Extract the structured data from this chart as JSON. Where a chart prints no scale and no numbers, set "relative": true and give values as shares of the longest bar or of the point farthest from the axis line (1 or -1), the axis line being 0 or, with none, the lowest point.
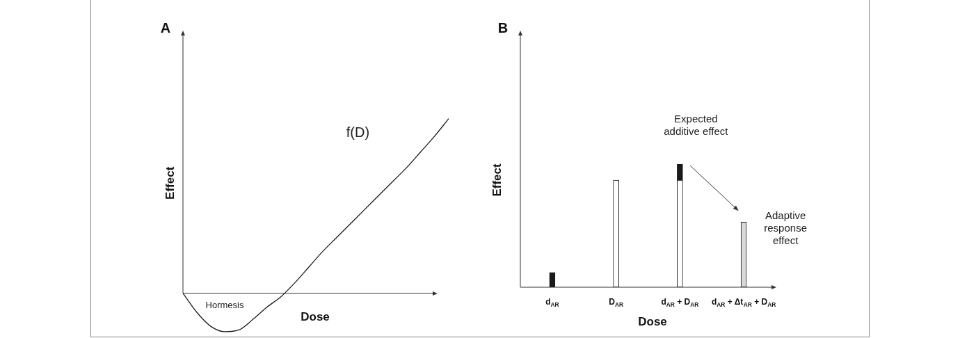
{
  "chart_data": [
    {
      "type": "line",
      "title": "A",
      "xlabel": "Dose",
      "ylabel": "Effect",
      "relative": true,
      "categories": [
        null,
        null,
        null,
        null,
        null,
        null,
        null,
        null,
        null,
        null,
        null,
        null,
        null,
        null,
        null,
        null,
        null,
        null,
        null,
        null
      ],
      "series": [
        {
          "name": "f(D)",
          "color": "#1a1a1a",
          "values": [
            0,
            -0.11,
            -0.19,
            -0.22,
            -0.21,
            -0.15,
            -0.08,
            -0.02,
            0.06,
            0.15,
            0.24,
            0.32,
            0.4,
            0.48,
            0.56,
            0.64,
            0.72,
            0.81,
            0.9,
            1
          ]
        }
      ],
      "annotations": [
        "Hormesis"
      ]
    },
    {
      "type": "bar",
      "title": "B",
      "xlabel": "Dose",
      "ylabel": "Effect",
      "relative": true,
      "stacked": true,
      "categories": [
        "d$_{AR}$",
        "D$_{AR}$",
        "d$_{AR}$ + D$_{AR}$",
        "d$_{AR}$ + Δt$_{AR}$ + D$_{AR}$"
      ],
      "series": [
        {
          "colors": [
            "#1a1a1a",
            "#ffffff",
            "#ffffff",
            "#d9d9d9"
          ],
          "values": [
            0.12,
            0.87,
            0.87,
            0.53
          ]
        },
        {
          "color": "#1a1a1a",
          "values": [
            null,
            null,
            0.13,
            null
          ]
        }
      ],
      "annotations": [
        "Expected additive effect",
        "Adaptive response effect"
      ]
    }
  ]
}
